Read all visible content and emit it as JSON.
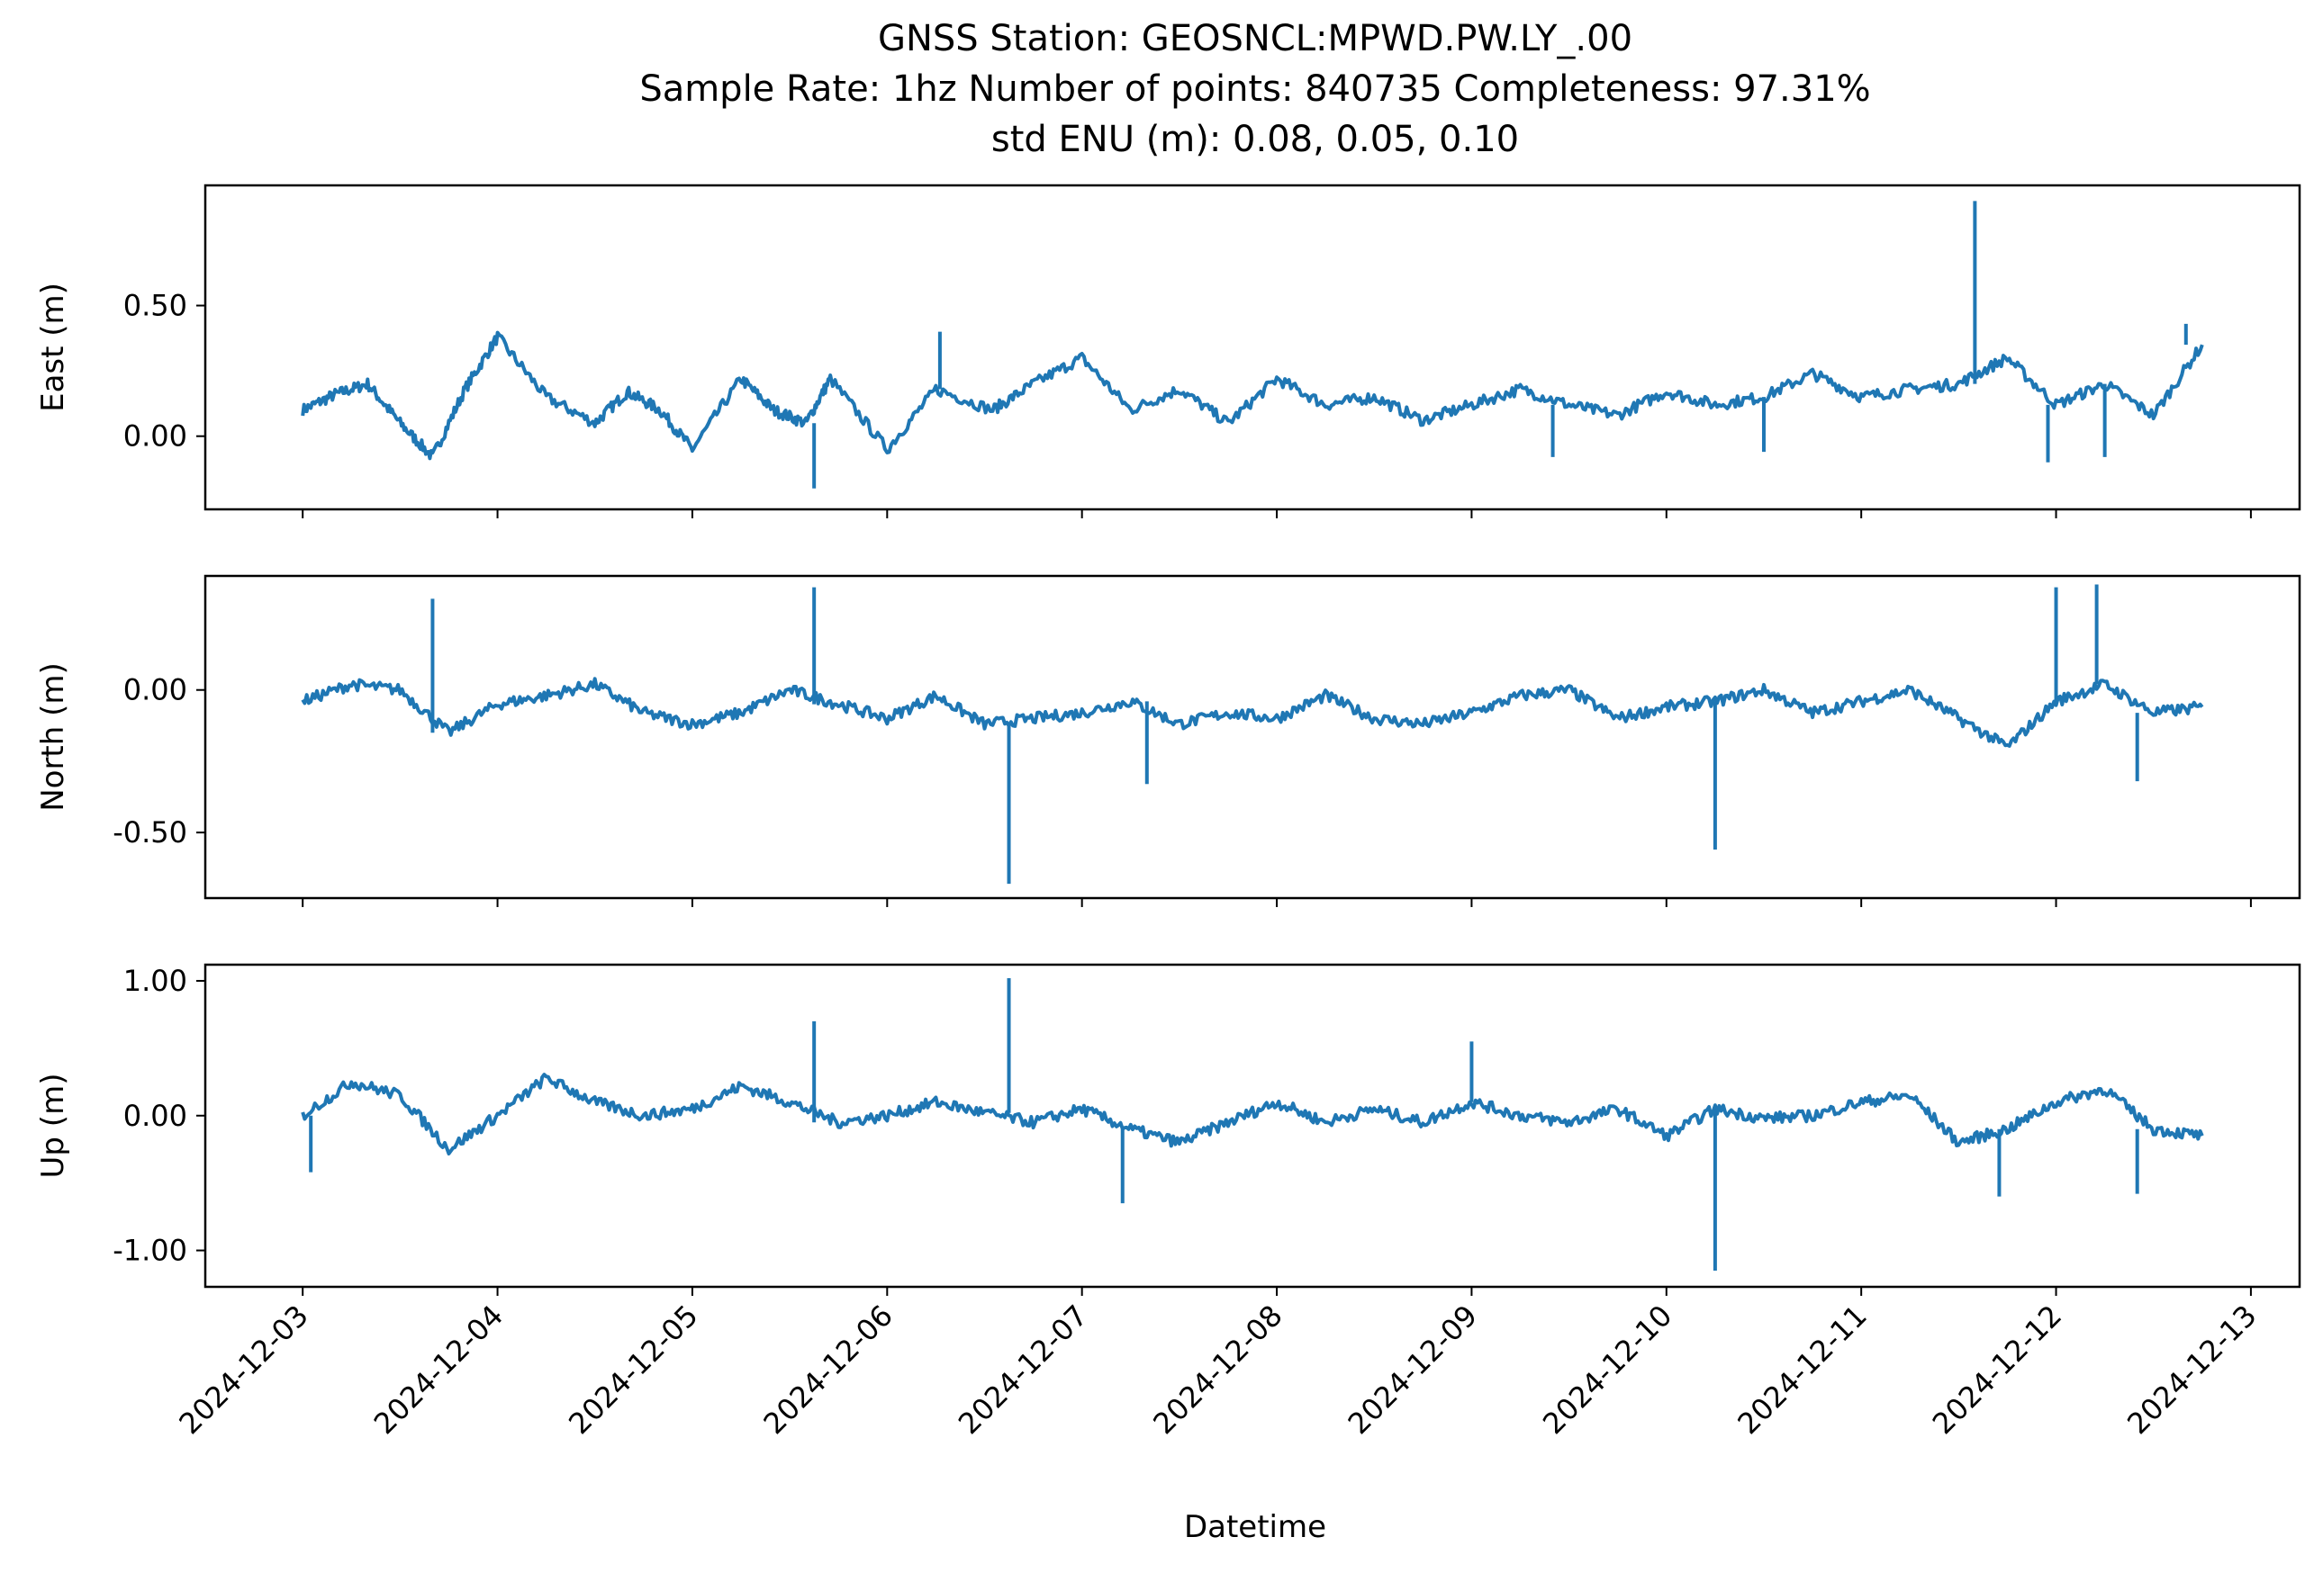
{
  "figure": {
    "title_lines": [
      "GNSS Station: GEOSNCL:MPWD.PW.LY_.00",
      "Sample Rate: 1hz   Number of points: 840735    Completeness:  97.31%",
      "std ENU (m):  0.08, 0.05, 0.10"
    ],
    "xlabel": "Datetime",
    "line_color": "#1f77b4"
  },
  "chart_data": [
    {
      "type": "line",
      "ylabel": "East (m)",
      "ylim": [
        -0.28,
        0.96
      ],
      "yticks": [
        0.0,
        0.5
      ],
      "ytick_labels": [
        "0.00",
        "0.50"
      ],
      "x": [
        "2024-12-03 00:00",
        "2024-12-03 04:00",
        "2024-12-03 08:00",
        "2024-12-03 12:00",
        "2024-12-03 16:00",
        "2024-12-03 20:00",
        "2024-12-04 00:00",
        "2024-12-04 06:00",
        "2024-12-04 12:00",
        "2024-12-04 16:00",
        "2024-12-04 20:00",
        "2024-12-05 00:00",
        "2024-12-05 06:00",
        "2024-12-05 10:00",
        "2024-12-05 14:00",
        "2024-12-05 17:00",
        "2024-12-06 00:00",
        "2024-12-06 06:00",
        "2024-12-06 13:00",
        "2024-12-06 18:00",
        "2024-12-07 00:00",
        "2024-12-07 06:00",
        "2024-12-07 12:00",
        "2024-12-07 18:00",
        "2024-12-08 00:00",
        "2024-12-08 06:00",
        "2024-12-08 12:00",
        "2024-12-08 18:00",
        "2024-12-09 00:00",
        "2024-12-09 06:00",
        "2024-12-09 12:00",
        "2024-12-09 18:00",
        "2024-12-10 00:00",
        "2024-12-10 06:00",
        "2024-12-10 12:00",
        "2024-12-10 18:00",
        "2024-12-11 00:00",
        "2024-12-11 06:00",
        "2024-12-11 12:00",
        "2024-12-11 18:00",
        "2024-12-12 00:00",
        "2024-12-12 06:00",
        "2024-12-12 12:00",
        "2024-12-12 18:00"
      ],
      "values": [
        0.1,
        0.16,
        0.2,
        0.05,
        -0.08,
        0.18,
        0.38,
        0.15,
        0.05,
        0.17,
        0.1,
        -0.05,
        0.22,
        0.1,
        0.05,
        0.22,
        -0.05,
        0.18,
        0.1,
        0.2,
        0.3,
        0.1,
        0.18,
        0.05,
        0.22,
        0.12,
        0.15,
        0.06,
        0.12,
        0.18,
        0.12,
        0.08,
        0.17,
        0.12,
        0.15,
        0.24,
        0.15,
        0.18,
        0.2,
        0.3,
        0.12,
        0.2,
        0.08,
        0.35
      ],
      "spikes": [
        {
          "x": "2024-12-05 15:00",
          "y": -0.2
        },
        {
          "x": "2024-12-06 06:30",
          "y": 0.4
        },
        {
          "x": "2024-12-11 14:00",
          "y": 0.9
        },
        {
          "x": "2024-12-11 23:00",
          "y": -0.1
        },
        {
          "x": "2024-12-12 06:00",
          "y": -0.08
        },
        {
          "x": "2024-12-09 10:00",
          "y": -0.08
        },
        {
          "x": "2024-12-10 12:00",
          "y": -0.06
        },
        {
          "x": "2024-12-12 16:00",
          "y": 0.43
        }
      ]
    },
    {
      "type": "line",
      "ylabel": "North (m)",
      "ylim": [
        -0.73,
        0.4
      ],
      "yticks": [
        0.0,
        -0.5
      ],
      "ytick_labels": [
        "0.00",
        "-0.50"
      ],
      "x": [
        "2024-12-03 00:00",
        "2024-12-03 06:00",
        "2024-12-03 12:00",
        "2024-12-03 18:00",
        "2024-12-04 00:00",
        "2024-12-04 06:00",
        "2024-12-04 12:00",
        "2024-12-04 18:00",
        "2024-12-05 00:00",
        "2024-12-05 06:00",
        "2024-12-05 12:00",
        "2024-12-05 18:00",
        "2024-12-06 00:00",
        "2024-12-06 06:00",
        "2024-12-06 12:00",
        "2024-12-06 18:00",
        "2024-12-07 00:00",
        "2024-12-07 06:00",
        "2024-12-07 12:00",
        "2024-12-07 18:00",
        "2024-12-08 00:00",
        "2024-12-08 06:00",
        "2024-12-08 12:00",
        "2024-12-08 18:00",
        "2024-12-09 00:00",
        "2024-12-09 06:00",
        "2024-12-09 12:00",
        "2024-12-09 18:00",
        "2024-12-10 00:00",
        "2024-12-10 06:00",
        "2024-12-10 12:00",
        "2024-12-10 18:00",
        "2024-12-11 00:00",
        "2024-12-11 06:00",
        "2024-12-11 12:00",
        "2024-12-11 18:00",
        "2024-12-12 00:00",
        "2024-12-12 06:00",
        "2024-12-12 12:00",
        "2024-12-12 18:00"
      ],
      "values": [
        -0.04,
        0.02,
        0.0,
        -0.15,
        -0.05,
        -0.02,
        0.02,
        -0.08,
        -0.12,
        -0.08,
        0.0,
        -0.05,
        -0.1,
        -0.02,
        -0.12,
        -0.1,
        -0.08,
        -0.04,
        -0.12,
        -0.08,
        -0.1,
        -0.02,
        -0.1,
        -0.12,
        -0.08,
        -0.02,
        0.0,
        -0.1,
        -0.06,
        -0.04,
        0.0,
        -0.08,
        -0.04,
        0.0,
        -0.1,
        -0.2,
        -0.04,
        0.02,
        -0.08,
        -0.06
      ],
      "spikes": [
        {
          "x": "2024-12-03 16:00",
          "y": 0.32
        },
        {
          "x": "2024-12-05 15:00",
          "y": 0.36
        },
        {
          "x": "2024-12-06 15:00",
          "y": -0.68
        },
        {
          "x": "2024-12-10 06:00",
          "y": -0.56
        },
        {
          "x": "2024-12-12 00:00",
          "y": 0.36
        },
        {
          "x": "2024-12-12 05:00",
          "y": 0.37
        },
        {
          "x": "2024-12-07 08:00",
          "y": -0.33
        },
        {
          "x": "2024-12-12 10:00",
          "y": -0.32
        }
      ]
    },
    {
      "type": "line",
      "ylabel": "Up (m)",
      "ylim": [
        -1.27,
        1.12
      ],
      "yticks": [
        1.0,
        0.0,
        -1.0
      ],
      "ytick_labels": [
        "1.00",
        "0.00",
        "-1.00"
      ],
      "x": [
        "2024-12-03 00:00",
        "2024-12-03 06:00",
        "2024-12-03 12:00",
        "2024-12-03 18:00",
        "2024-12-04 00:00",
        "2024-12-04 06:00",
        "2024-12-04 12:00",
        "2024-12-04 18:00",
        "2024-12-05 00:00",
        "2024-12-05 06:00",
        "2024-12-05 12:00",
        "2024-12-05 18:00",
        "2024-12-06 00:00",
        "2024-12-06 06:00",
        "2024-12-06 12:00",
        "2024-12-06 18:00",
        "2024-12-07 00:00",
        "2024-12-07 06:00",
        "2024-12-07 12:00",
        "2024-12-07 18:00",
        "2024-12-08 00:00",
        "2024-12-08 06:00",
        "2024-12-08 12:00",
        "2024-12-08 18:00",
        "2024-12-09 00:00",
        "2024-12-09 06:00",
        "2024-12-09 12:00",
        "2024-12-09 18:00",
        "2024-12-10 00:00",
        "2024-12-10 06:00",
        "2024-12-10 12:00",
        "2024-12-10 18:00",
        "2024-12-11 00:00",
        "2024-12-11 06:00",
        "2024-12-11 12:00",
        "2024-12-11 18:00",
        "2024-12-12 00:00",
        "2024-12-12 06:00",
        "2024-12-12 12:00",
        "2024-12-12 18:00"
      ],
      "values": [
        0.0,
        0.25,
        0.15,
        -0.25,
        0.0,
        0.28,
        0.1,
        0.0,
        0.05,
        0.22,
        0.1,
        -0.05,
        0.0,
        0.1,
        0.02,
        -0.05,
        0.05,
        -0.1,
        -0.2,
        -0.05,
        0.1,
        -0.05,
        0.05,
        -0.05,
        0.1,
        0.0,
        -0.05,
        0.05,
        -0.15,
        0.05,
        -0.02,
        0.0,
        0.1,
        0.15,
        -0.2,
        -0.1,
        0.1,
        0.2,
        -0.1,
        -0.15
      ],
      "spikes": [
        {
          "x": "2024-12-05 15:00",
          "y": 0.7
        },
        {
          "x": "2024-12-06 15:00",
          "y": 1.02
        },
        {
          "x": "2024-12-07 05:00",
          "y": -0.65
        },
        {
          "x": "2024-12-10 06:00",
          "y": -1.15
        },
        {
          "x": "2024-12-03 01:00",
          "y": -0.42
        },
        {
          "x": "2024-12-11 17:00",
          "y": -0.6
        },
        {
          "x": "2024-12-12 10:00",
          "y": -0.58
        },
        {
          "x": "2024-12-09 00:00",
          "y": 0.55
        }
      ]
    }
  ],
  "x_axis": {
    "range": [
      "2024-12-02 12:00",
      "2024-12-13 06:00"
    ],
    "ticks": [
      "2024-12-03",
      "2024-12-04",
      "2024-12-05",
      "2024-12-06",
      "2024-12-07",
      "2024-12-08",
      "2024-12-09",
      "2024-12-10",
      "2024-12-11",
      "2024-12-12",
      "2024-12-13"
    ]
  }
}
